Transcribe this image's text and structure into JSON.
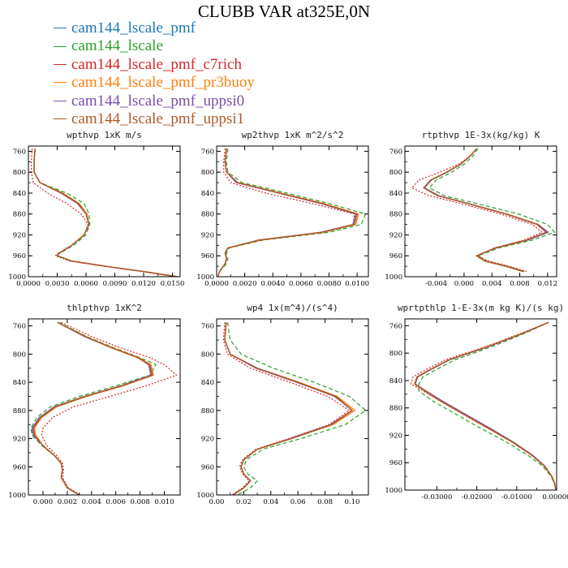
{
  "figure_title": "CLUBB VAR at325E,0N",
  "legend": [
    {
      "name": "cam144_lscale_pmf",
      "color": "#1f77b4"
    },
    {
      "name": "cam144_lscale",
      "color": "#2ca02c"
    },
    {
      "name": "cam144_lscale_pmf_c7rich",
      "color": "#d62728"
    },
    {
      "name": "cam144_lscale_pmf_pr3buoy",
      "color": "#ff7f0e"
    },
    {
      "name": "cam144_lscale_pmf_uppsi0",
      "color": "#7b4fa6"
    },
    {
      "name": "cam144_lscale_pmf_uppsi1",
      "color": "#b05a2a"
    }
  ],
  "chart_data": [
    {
      "type": "line",
      "title": "wpthvp  1xK m/s",
      "xlim": [
        0.0,
        0.0158
      ],
      "ylim": [
        1000,
        750
      ],
      "x_ticks": [
        0.0,
        0.003,
        0.006,
        0.009,
        0.012,
        0.015
      ],
      "x_tick_labels": [
        "0.0000",
        "0.0030",
        "0.0060",
        "0.0090",
        "0.0120",
        "0.0150"
      ],
      "y_ticks": [
        760,
        800,
        840,
        880,
        920,
        960,
        1000
      ],
      "y_tick_labels": [
        "760",
        "800",
        "840",
        "880",
        "920",
        "960",
        "1000"
      ],
      "y": [
        755,
        775,
        800,
        820,
        840,
        860,
        880,
        900,
        920,
        940,
        955,
        960,
        970,
        980,
        990,
        1000
      ],
      "series": [
        {
          "x": [
            0.0007,
            0.0006,
            0.0006,
            0.0012,
            0.0035,
            0.0052,
            0.006,
            0.0063,
            0.0058,
            0.0045,
            0.0032,
            0.003,
            0.0045,
            0.008,
            0.012,
            0.0155
          ]
        },
        {
          "x": [
            0.0007,
            0.0006,
            0.0006,
            0.0012,
            0.004,
            0.0058,
            0.0063,
            0.0064,
            0.006,
            0.0047,
            0.0033,
            0.0029,
            0.0045,
            0.008,
            0.012,
            0.0155
          ]
        },
        {
          "x": [
            0.0004,
            0.0003,
            0.0003,
            0.0005,
            0.002,
            0.004,
            0.0055,
            0.0062,
            0.0058,
            0.0045,
            0.0031,
            0.0028,
            0.0043,
            0.0078,
            0.0118,
            0.0152
          ]
        },
        {
          "x": [
            0.0007,
            0.0006,
            0.0006,
            0.0012,
            0.0036,
            0.0053,
            0.0061,
            0.0063,
            0.0058,
            0.0045,
            0.0032,
            0.003,
            0.0045,
            0.008,
            0.012,
            0.0155
          ]
        },
        {
          "x": [
            0.0007,
            0.0006,
            0.0006,
            0.0012,
            0.0034,
            0.0051,
            0.006,
            0.0063,
            0.0058,
            0.0045,
            0.0032,
            0.003,
            0.0045,
            0.008,
            0.012,
            0.0155
          ]
        },
        {
          "x": [
            0.0007,
            0.0006,
            0.0006,
            0.0012,
            0.0035,
            0.0052,
            0.006,
            0.0063,
            0.0058,
            0.0045,
            0.0032,
            0.003,
            0.0045,
            0.008,
            0.012,
            0.0155
          ]
        }
      ]
    },
    {
      "type": "line",
      "title": "wp2thvp  1xK m^2/s^2",
      "xlim": [
        0.0,
        0.0108
      ],
      "ylim": [
        1000,
        750
      ],
      "x_ticks": [
        0.0,
        0.002,
        0.004,
        0.006,
        0.008,
        0.01
      ],
      "x_tick_labels": [
        "0.0000",
        "0.0020",
        "0.0040",
        "0.0060",
        "0.0080",
        "0.0100"
      ],
      "y_ticks": [
        760,
        800,
        840,
        880,
        920,
        960,
        1000
      ],
      "y_tick_labels": [
        "760",
        "800",
        "840",
        "880",
        "920",
        "960",
        "1000"
      ],
      "y": [
        755,
        780,
        800,
        820,
        840,
        860,
        880,
        900,
        915,
        930,
        945,
        955,
        965,
        975,
        990,
        1000
      ],
      "series": [
        {
          "x": [
            0.0007,
            0.0006,
            0.0007,
            0.0015,
            0.0045,
            0.0075,
            0.01,
            0.0098,
            0.0075,
            0.003,
            0.0008,
            0.0006,
            0.0007,
            0.0006,
            0.0002,
            0.0001
          ]
        },
        {
          "x": [
            0.0008,
            0.0007,
            0.0008,
            0.0018,
            0.005,
            0.008,
            0.0106,
            0.0103,
            0.008,
            0.0033,
            0.0009,
            0.0007,
            0.0008,
            0.0007,
            0.0002,
            0.0001
          ]
        },
        {
          "x": [
            0.0006,
            0.0005,
            0.0005,
            0.001,
            0.0035,
            0.0068,
            0.0098,
            0.0097,
            0.0076,
            0.0032,
            0.0008,
            0.0006,
            0.0007,
            0.0006,
            0.0002,
            0.0001
          ]
        },
        {
          "x": [
            0.0007,
            0.0006,
            0.0007,
            0.0015,
            0.0046,
            0.0076,
            0.0101,
            0.0099,
            0.0076,
            0.0031,
            0.0008,
            0.0006,
            0.0007,
            0.0006,
            0.0002,
            0.0001
          ]
        },
        {
          "x": [
            0.0007,
            0.0006,
            0.0007,
            0.0014,
            0.0044,
            0.0074,
            0.0099,
            0.0097,
            0.0074,
            0.003,
            0.0008,
            0.0006,
            0.0007,
            0.0006,
            0.0002,
            0.0001
          ]
        },
        {
          "x": [
            0.0007,
            0.0006,
            0.0007,
            0.0015,
            0.0045,
            0.0075,
            0.01,
            0.0098,
            0.0075,
            0.003,
            0.0008,
            0.0006,
            0.0007,
            0.0006,
            0.0002,
            0.0001
          ]
        }
      ]
    },
    {
      "type": "line",
      "title": "rtpthvp  1E-3x(kg/kg) K",
      "xlim": [
        -0.0085,
        0.0133
      ],
      "ylim": [
        1000,
        750
      ],
      "x_ticks": [
        -0.004,
        0.0,
        0.004,
        0.008,
        0.012
      ],
      "x_tick_labels": [
        "-0.004",
        "0.000",
        "0.004",
        "0.008",
        "0.012"
      ],
      "y_ticks": [
        760,
        800,
        840,
        880,
        920,
        960,
        1000
      ],
      "y_tick_labels": [
        "760",
        "800",
        "840",
        "880",
        "920",
        "960",
        "1000"
      ],
      "y": [
        755,
        770,
        785,
        800,
        815,
        830,
        845,
        860,
        880,
        900,
        915,
        930,
        945,
        960,
        970,
        980,
        990
      ],
      "series": [
        {
          "x": [
            0.0018,
            0.0008,
            -0.0005,
            -0.0025,
            -0.0048,
            -0.0058,
            -0.0038,
            0.0005,
            0.006,
            0.0105,
            0.0118,
            0.009,
            0.0045,
            0.0018,
            0.003,
            0.006,
            0.0085
          ]
        },
        {
          "x": [
            0.002,
            0.0012,
            0.0,
            -0.0018,
            -0.004,
            -0.005,
            -0.0028,
            0.0018,
            0.0078,
            0.012,
            0.013,
            0.0098,
            0.005,
            0.002,
            0.0032,
            0.0062,
            0.0087
          ]
        },
        {
          "x": [
            0.0018,
            0.0008,
            -0.0008,
            -0.0035,
            -0.0065,
            -0.0075,
            -0.005,
            -0.0005,
            0.0052,
            0.0098,
            0.0112,
            0.0086,
            0.0043,
            0.002,
            0.0035,
            0.0065,
            0.009
          ]
        },
        {
          "x": [
            0.0018,
            0.0008,
            -0.0005,
            -0.0025,
            -0.0048,
            -0.0058,
            -0.0037,
            0.0006,
            0.0062,
            0.0107,
            0.012,
            0.0091,
            0.0046,
            0.0018,
            0.003,
            0.006,
            0.0085
          ]
        },
        {
          "x": [
            0.0018,
            0.0008,
            -0.0005,
            -0.0024,
            -0.0047,
            -0.0057,
            -0.0036,
            0.0006,
            0.0061,
            0.0106,
            0.0121,
            0.0092,
            0.0045,
            0.0018,
            0.003,
            0.006,
            0.0085
          ]
        },
        {
          "x": [
            0.0018,
            0.0008,
            -0.0005,
            -0.0025,
            -0.0048,
            -0.0058,
            -0.0038,
            0.0005,
            0.006,
            0.0105,
            0.0118,
            0.009,
            0.0045,
            0.0018,
            0.003,
            0.006,
            0.0085
          ]
        }
      ]
    },
    {
      "type": "line",
      "title": "thlpthvp  1xK^2",
      "xlim": [
        -0.0012,
        0.0113
      ],
      "ylim": [
        1000,
        750
      ],
      "x_ticks": [
        0.0,
        0.002,
        0.004,
        0.006,
        0.008,
        0.01
      ],
      "x_tick_labels": [
        "0.000",
        "0.002",
        "0.004",
        "0.006",
        "0.008",
        "0.010"
      ],
      "y_ticks": [
        760,
        800,
        840,
        880,
        920,
        960,
        1000
      ],
      "y_tick_labels": [
        "760",
        "800",
        "840",
        "880",
        "920",
        "960",
        "1000"
      ],
      "y": [
        755,
        775,
        790,
        805,
        815,
        830,
        845,
        860,
        875,
        890,
        905,
        915,
        930,
        945,
        955,
        965,
        975,
        990,
        1000
      ],
      "series": [
        {
          "x": [
            0.0012,
            0.0035,
            0.0055,
            0.0078,
            0.0088,
            0.009,
            0.0065,
            0.0035,
            0.001,
            -0.0002,
            -0.0008,
            -0.0007,
            0.0,
            0.001,
            0.0015,
            0.0016,
            0.0015,
            0.002,
            0.003
          ]
        },
        {
          "x": [
            0.0013,
            0.0036,
            0.0057,
            0.008,
            0.0093,
            0.0088,
            0.006,
            0.003,
            0.0006,
            -0.0005,
            -0.001,
            -0.0009,
            -0.0001,
            0.001,
            0.0015,
            0.0016,
            0.0015,
            0.002,
            0.003
          ]
        },
        {
          "x": [
            0.0015,
            0.004,
            0.0062,
            0.0088,
            0.01,
            0.011,
            0.0085,
            0.0055,
            0.0025,
            0.0008,
            0.0,
            -0.0001,
            0.0003,
            0.0012,
            0.0016,
            0.0017,
            0.0016,
            0.0021,
            0.0031
          ]
        },
        {
          "x": [
            0.0012,
            0.0035,
            0.0056,
            0.0079,
            0.0089,
            0.0091,
            0.0066,
            0.0036,
            0.0011,
            -0.0001,
            -0.0007,
            -0.0006,
            0.0,
            0.001,
            0.0015,
            0.0016,
            0.0015,
            0.002,
            0.003
          ]
        },
        {
          "x": [
            0.0012,
            0.0034,
            0.0055,
            0.0078,
            0.0087,
            0.0089,
            0.0064,
            0.0034,
            0.0009,
            -0.0003,
            -0.0009,
            -0.0008,
            0.0,
            0.001,
            0.0015,
            0.0016,
            0.0015,
            0.002,
            0.003
          ]
        },
        {
          "x": [
            0.0012,
            0.0035,
            0.0055,
            0.0078,
            0.0088,
            0.009,
            0.0065,
            0.0035,
            0.001,
            -0.0002,
            -0.0008,
            -0.0007,
            0.0,
            0.001,
            0.0015,
            0.0016,
            0.0015,
            0.002,
            0.003
          ]
        }
      ]
    },
    {
      "type": "line",
      "title": "wp4  1x(m^4)/(s^4)",
      "xlim": [
        0.0,
        0.112
      ],
      "ylim": [
        1000,
        750
      ],
      "x_ticks": [
        0.0,
        0.02,
        0.04,
        0.06,
        0.08,
        0.1
      ],
      "x_tick_labels": [
        "0.00",
        "0.02",
        "0.04",
        "0.06",
        "0.08",
        "0.10"
      ],
      "y_ticks": [
        760,
        800,
        840,
        880,
        920,
        960,
        1000
      ],
      "y_tick_labels": [
        "760",
        "800",
        "840",
        "880",
        "920",
        "960",
        "1000"
      ],
      "y": [
        755,
        780,
        800,
        820,
        840,
        860,
        880,
        900,
        920,
        935,
        950,
        960,
        970,
        980,
        990,
        1000
      ],
      "series": [
        {
          "x": [
            0.007,
            0.006,
            0.01,
            0.03,
            0.06,
            0.088,
            0.1,
            0.085,
            0.055,
            0.03,
            0.02,
            0.018,
            0.02,
            0.025,
            0.02,
            0.012
          ]
        },
        {
          "x": [
            0.008,
            0.01,
            0.018,
            0.042,
            0.072,
            0.098,
            0.11,
            0.095,
            0.062,
            0.034,
            0.022,
            0.02,
            0.023,
            0.03,
            0.025,
            0.015
          ]
        },
        {
          "x": [
            0.006,
            0.005,
            0.008,
            0.025,
            0.054,
            0.082,
            0.098,
            0.083,
            0.053,
            0.029,
            0.019,
            0.017,
            0.019,
            0.024,
            0.019,
            0.011
          ]
        },
        {
          "x": [
            0.007,
            0.006,
            0.01,
            0.03,
            0.061,
            0.089,
            0.102,
            0.086,
            0.055,
            0.03,
            0.02,
            0.018,
            0.02,
            0.025,
            0.02,
            0.012
          ]
        },
        {
          "x": [
            0.007,
            0.006,
            0.01,
            0.029,
            0.059,
            0.087,
            0.1,
            0.084,
            0.054,
            0.03,
            0.02,
            0.018,
            0.02,
            0.025,
            0.02,
            0.012
          ]
        },
        {
          "x": [
            0.007,
            0.006,
            0.01,
            0.03,
            0.06,
            0.088,
            0.1,
            0.085,
            0.055,
            0.03,
            0.02,
            0.018,
            0.02,
            0.025,
            0.02,
            0.012
          ]
        }
      ]
    },
    {
      "type": "line",
      "title": "wprtpthlp  1-E-3x(m kg K)/(s kg)",
      "xlim": [
        -0.038,
        0.0
      ],
      "ylim": [
        1000,
        750
      ],
      "x_ticks": [
        -0.03,
        -0.02,
        -0.01,
        0.0
      ],
      "x_tick_labels": [
        "-0.03000",
        "-0.02000",
        "-0.01000",
        "0.00000"
      ],
      "y_ticks": [
        760,
        800,
        840,
        880,
        920,
        960,
        1000
      ],
      "y_tick_labels": [
        "760",
        "800",
        "840",
        "880",
        "920",
        "960",
        "1000"
      ],
      "y": [
        755,
        770,
        790,
        810,
        825,
        835,
        845,
        855,
        870,
        890,
        910,
        930,
        950,
        965,
        980,
        990,
        1000
      ],
      "series": [
        {
          "x": [
            -0.002,
            -0.008,
            -0.017,
            -0.027,
            -0.032,
            -0.035,
            -0.0355,
            -0.033,
            -0.029,
            -0.023,
            -0.017,
            -0.011,
            -0.006,
            -0.003,
            -0.0012,
            -0.0005,
            -0.0002
          ]
        },
        {
          "x": [
            -0.002,
            -0.0075,
            -0.016,
            -0.0255,
            -0.0305,
            -0.0335,
            -0.0345,
            -0.0345,
            -0.031,
            -0.025,
            -0.019,
            -0.0125,
            -0.007,
            -0.0035,
            -0.0014,
            -0.0006,
            -0.0002
          ]
        },
        {
          "x": [
            -0.002,
            -0.0085,
            -0.0175,
            -0.028,
            -0.033,
            -0.036,
            -0.0365,
            -0.0335,
            -0.0292,
            -0.0232,
            -0.0172,
            -0.0112,
            -0.0061,
            -0.0031,
            -0.0012,
            -0.0005,
            -0.0002
          ]
        },
        {
          "x": [
            -0.002,
            -0.008,
            -0.017,
            -0.027,
            -0.032,
            -0.035,
            -0.0356,
            -0.0331,
            -0.0291,
            -0.0231,
            -0.0171,
            -0.0111,
            -0.006,
            -0.003,
            -0.0012,
            -0.0005,
            -0.0002
          ]
        },
        {
          "x": [
            -0.002,
            -0.008,
            -0.0168,
            -0.0268,
            -0.0318,
            -0.0348,
            -0.0354,
            -0.0328,
            -0.0286,
            -0.0226,
            -0.0166,
            -0.0108,
            -0.0058,
            -0.0029,
            -0.0012,
            -0.0005,
            -0.0002
          ]
        },
        {
          "x": [
            -0.002,
            -0.008,
            -0.017,
            -0.027,
            -0.032,
            -0.035,
            -0.0355,
            -0.033,
            -0.029,
            -0.023,
            -0.017,
            -0.011,
            -0.006,
            -0.003,
            -0.0012,
            -0.0005,
            -0.0002
          ]
        }
      ]
    }
  ]
}
